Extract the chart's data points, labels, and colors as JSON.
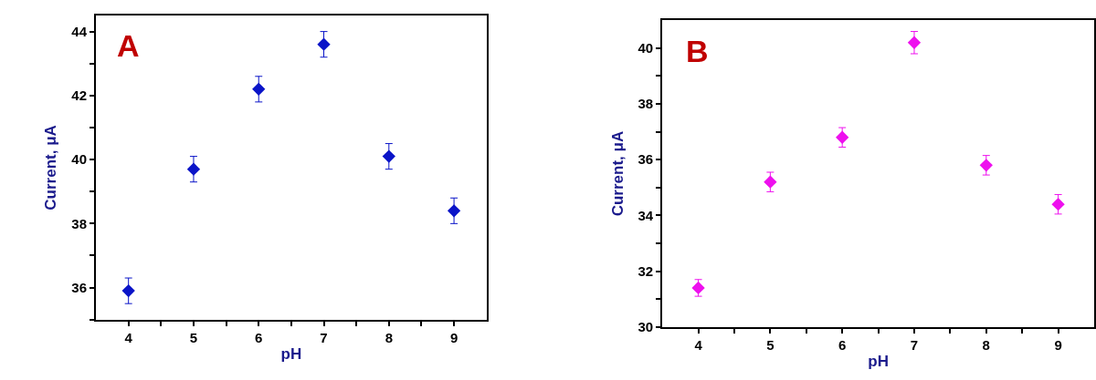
{
  "chart_data": [
    {
      "type": "scatter",
      "annotations": [
        "A"
      ],
      "xlabel": "pH",
      "ylabel": "Current, μA",
      "x": [
        4,
        5,
        6,
        7,
        8,
        9
      ],
      "series": [
        {
          "color": "#0a14c8",
          "values": [
            35.9,
            39.7,
            42.2,
            43.6,
            40.1,
            38.4
          ],
          "errors": [
            0.4,
            0.4,
            0.4,
            0.4,
            0.4,
            0.4
          ]
        }
      ],
      "xlim": [
        3.5,
        9.5
      ],
      "xticks": [
        4,
        {
          "value": 4.5,
          "label": null
        },
        5,
        {
          "value": 5.5,
          "label": null
        },
        6,
        {
          "value": 6.5,
          "label": null
        },
        7,
        {
          "value": 7.5,
          "label": null
        },
        8,
        {
          "value": 8.5,
          "label": null
        },
        9
      ],
      "ylim": [
        35,
        44.5
      ],
      "yticks": [
        {
          "value": 35,
          "label": null
        },
        36,
        {
          "value": 37,
          "label": null
        },
        38,
        {
          "value": 39,
          "label": null
        },
        40,
        {
          "value": 41,
          "label": null
        },
        42,
        {
          "value": 43,
          "label": null
        },
        44
      ],
      "marker": "diamond",
      "legend": false
    },
    {
      "type": "scatter",
      "annotations": [
        "B"
      ],
      "xlabel": "pH",
      "ylabel": "Current, μA",
      "x": [
        4,
        5,
        6,
        7,
        8,
        9
      ],
      "series": [
        {
          "color": "#ee10ee",
          "values": [
            31.4,
            35.2,
            36.8,
            40.2,
            35.8,
            34.4
          ],
          "errors": [
            0.3,
            0.35,
            0.35,
            0.4,
            0.35,
            0.35
          ]
        }
      ],
      "xlim": [
        3.5,
        9.5
      ],
      "xticks": [
        4,
        {
          "value": 4.5,
          "label": null
        },
        5,
        {
          "value": 5.5,
          "label": null
        },
        6,
        {
          "value": 6.5,
          "label": null
        },
        7,
        {
          "value": 7.5,
          "label": null
        },
        8,
        {
          "value": 8.5,
          "label": null
        },
        9
      ],
      "ylim": [
        30,
        41
      ],
      "yticks": [
        30,
        {
          "value": 31,
          "label": null
        },
        32,
        {
          "value": 33,
          "label": null
        },
        34,
        {
          "value": 35,
          "label": null
        },
        36,
        {
          "value": 37,
          "label": null
        },
        38,
        {
          "value": 39,
          "label": null
        },
        40
      ],
      "marker": "diamond",
      "legend": false
    }
  ]
}
